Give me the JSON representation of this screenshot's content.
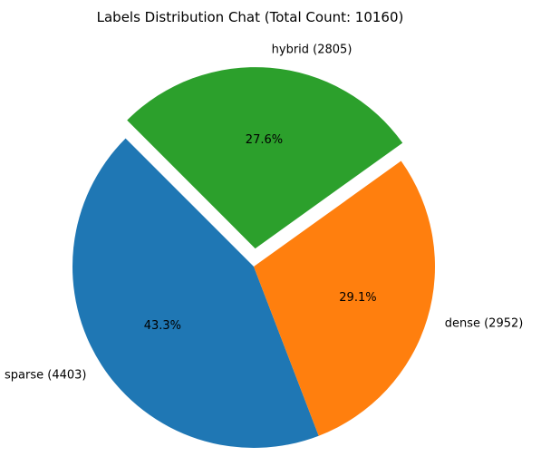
{
  "chart_data": {
    "type": "pie",
    "title": "Labels Distribution Chat (Total Count: 10160)",
    "slices": [
      {
        "label": "sparse (4403)",
        "value": 4403,
        "percent_label": "43.3%",
        "color": "#1f77b4",
        "exploded": false
      },
      {
        "label": "dense (2952)",
        "value": 2952,
        "percent_label": "29.1%",
        "color": "#ff7f0e",
        "exploded": false
      },
      {
        "label": "hybrid (2805)",
        "value": 2805,
        "percent_label": "27.6%",
        "color": "#2ca02c",
        "exploded": true
      }
    ],
    "legend": "none",
    "grid": false
  }
}
